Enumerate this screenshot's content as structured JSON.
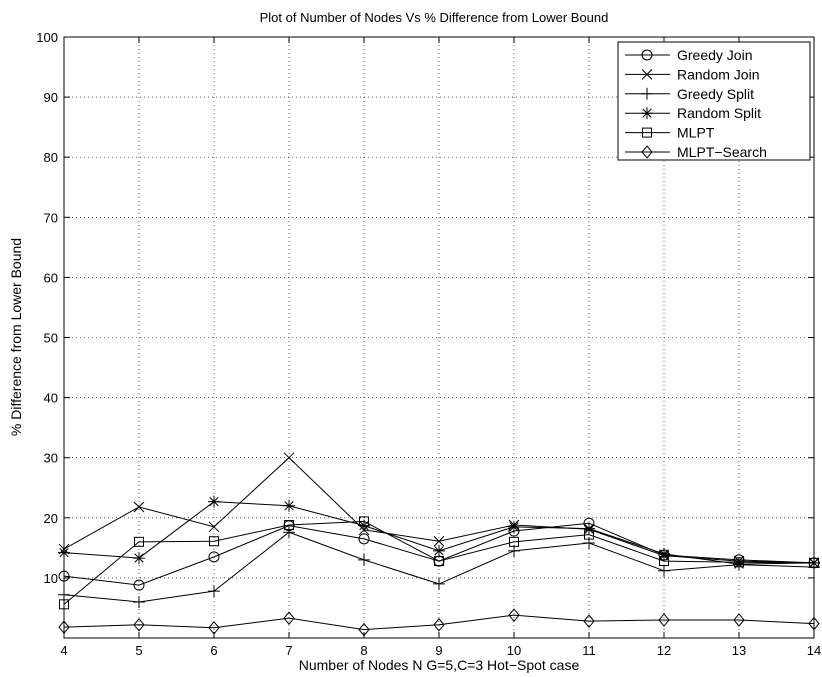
{
  "chart_data": {
    "type": "line",
    "title": "Plot of Number of Nodes Vs % Difference from Lower Bound",
    "xlabel": "Number of Nodes N G=5,C=3 Hot−Spot case",
    "ylabel": "% Difference from Lower Bound",
    "xlim": [
      4,
      14
    ],
    "ylim": [
      0,
      100
    ],
    "x": [
      4,
      5,
      6,
      7,
      8,
      9,
      10,
      11,
      12,
      13,
      14
    ],
    "x_ticks": [
      "4",
      "5",
      "6",
      "7",
      "8",
      "9",
      "10",
      "11",
      "12",
      "13",
      "14"
    ],
    "y_ticks": [
      "10",
      "20",
      "30",
      "40",
      "50",
      "60",
      "70",
      "80",
      "90",
      "100"
    ],
    "grid": true,
    "legend_position": "top-right",
    "series": [
      {
        "name": "Greedy Join",
        "marker": "circle",
        "values": [
          10.3,
          8.8,
          13.5,
          18.7,
          16.5,
          12.8,
          17.8,
          19.1,
          13.8,
          13.0,
          12.5
        ]
      },
      {
        "name": "Random Join",
        "marker": "x",
        "values": [
          14.8,
          21.8,
          18.5,
          30.0,
          18.0,
          16.1,
          18.8,
          18.1,
          13.7,
          12.8,
          12.5
        ]
      },
      {
        "name": "Greedy Split",
        "marker": "plus",
        "values": [
          7.2,
          6.0,
          7.8,
          17.6,
          13.0,
          9.0,
          14.5,
          15.8,
          11.2,
          12.2,
          11.8
        ]
      },
      {
        "name": "Random Split",
        "marker": "star",
        "values": [
          14.2,
          13.3,
          22.7,
          22.0,
          18.7,
          14.5,
          18.5,
          18.2,
          14.0,
          12.3,
          12.5
        ]
      },
      {
        "name": "MLPT",
        "marker": "square",
        "values": [
          5.6,
          16.0,
          16.1,
          18.8,
          19.4,
          12.8,
          16.0,
          17.2,
          12.8,
          12.6,
          12.5
        ]
      },
      {
        "name": "MLPT−Search",
        "marker": "diamond",
        "values": [
          1.8,
          2.2,
          1.7,
          3.3,
          1.4,
          2.2,
          3.8,
          2.8,
          3.0,
          3.0,
          2.4
        ]
      }
    ]
  }
}
